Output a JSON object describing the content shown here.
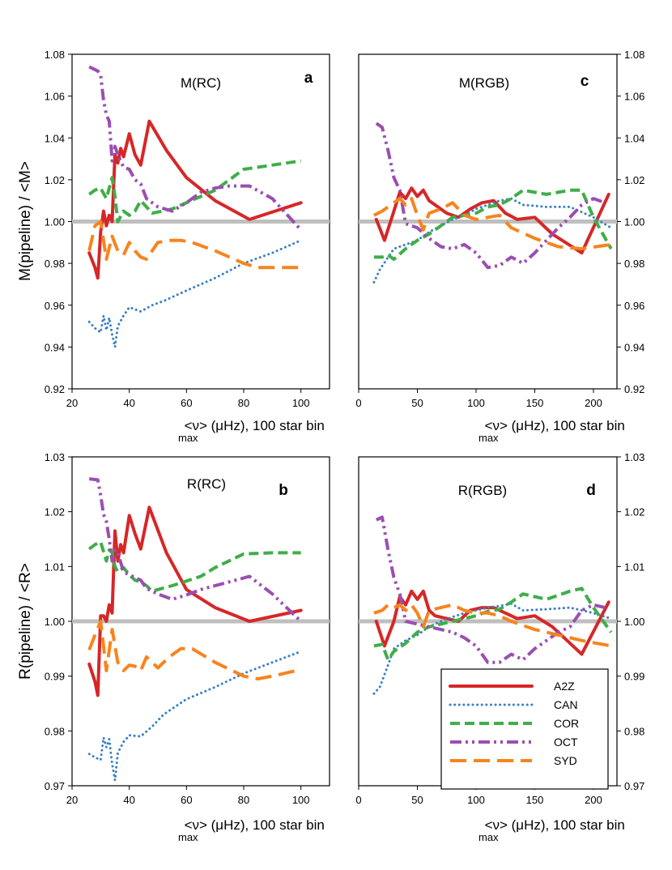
{
  "colors": {
    "A2Z": "#d62728",
    "CAN": "#3b80c4",
    "COR": "#3fae48",
    "OCT": "#9a4fb0",
    "SYD": "#f7841d",
    "reference": "#bfbfbf"
  },
  "legend": [
    "A2Z",
    "CAN",
    "COR",
    "OCT",
    "SYD"
  ],
  "xlabel_parts": {
    "pre": "<ν",
    "sub": "max",
    "post": "> (μHz), 100 star bin"
  },
  "ylabels": {
    "mass": "M(pipeline) / <M>",
    "radius": "R(pipeline) / <R>"
  },
  "chart_data": [
    {
      "id": "a",
      "type": "line",
      "title": "M(RC)",
      "letter": "a",
      "xlim": [
        20,
        110
      ],
      "ylim": [
        0.92,
        1.08
      ],
      "xticks": [
        20,
        40,
        60,
        80,
        100
      ],
      "yticks": [
        0.92,
        0.94,
        0.96,
        0.98,
        1.0,
        1.02,
        1.04,
        1.06,
        1.08
      ],
      "ytick_labels": [
        "0.92",
        "0.94",
        "0.96",
        "0.98",
        "1.00",
        "1.02",
        "1.04",
        "1.06",
        "1.08"
      ],
      "y_axis_side": "left",
      "reference_line": 1.0,
      "series": [
        {
          "name": "A2Z",
          "x": [
            26,
            28,
            29,
            30,
            31,
            32,
            33,
            34,
            35,
            36,
            37,
            38,
            40,
            42,
            44,
            47,
            53,
            60,
            70,
            82,
            100
          ],
          "y": [
            0.985,
            0.978,
            0.973,
            0.995,
            1.005,
            0.998,
            1.003,
            1.0,
            1.032,
            1.028,
            1.035,
            1.031,
            1.042,
            1.032,
            1.027,
            1.048,
            1.034,
            1.021,
            1.01,
            1.001,
            1.009
          ]
        },
        {
          "name": "CAN",
          "x": [
            26,
            28,
            30,
            31,
            32,
            33,
            34,
            35,
            36,
            38,
            40,
            44,
            48,
            52,
            60,
            70,
            80,
            90,
            100
          ],
          "y": [
            0.952,
            0.949,
            0.947,
            0.955,
            0.948,
            0.954,
            0.946,
            0.94,
            0.95,
            0.955,
            0.959,
            0.957,
            0.96,
            0.962,
            0.967,
            0.973,
            0.98,
            0.985,
            0.991
          ]
        },
        {
          "name": "COR",
          "x": [
            26,
            28,
            30,
            32,
            33,
            34,
            35,
            36,
            38,
            40,
            42,
            44,
            46,
            48,
            55,
            65,
            70,
            80,
            90,
            100
          ],
          "y": [
            1.013,
            1.015,
            1.016,
            1.011,
            1.016,
            1.021,
            1.012,
            1.0,
            1.005,
            1.003,
            1.005,
            1.01,
            1.007,
            1.004,
            1.006,
            1.012,
            1.015,
            1.025,
            1.027,
            1.029
          ]
        },
        {
          "name": "OCT",
          "x": [
            26,
            29,
            30,
            31,
            32,
            33,
            34,
            35,
            36,
            38,
            40,
            42,
            44,
            46,
            50,
            55,
            60,
            65,
            70,
            75,
            82,
            90,
            100
          ],
          "y": [
            1.074,
            1.072,
            1.07,
            1.058,
            1.051,
            1.048,
            1.029,
            1.036,
            1.032,
            1.026,
            1.025,
            1.02,
            1.018,
            1.011,
            1.007,
            1.005,
            1.009,
            1.014,
            1.016,
            1.017,
            1.017,
            1.011,
            0.996
          ]
        },
        {
          "name": "SYD",
          "x": [
            26,
            28,
            30,
            32,
            34,
            36,
            38,
            40,
            42,
            44,
            46,
            50,
            54,
            58,
            62,
            70,
            80,
            85,
            90,
            100
          ],
          "y": [
            0.986,
            0.998,
            1.0,
            0.982,
            0.993,
            0.986,
            0.984,
            0.99,
            0.986,
            0.983,
            0.982,
            0.99,
            0.991,
            0.991,
            0.99,
            0.986,
            0.98,
            0.978,
            0.978,
            0.978
          ]
        }
      ]
    },
    {
      "id": "c",
      "type": "line",
      "title": "M(RGB)",
      "letter": "c",
      "xlim": [
        0,
        220
      ],
      "ylim": [
        0.92,
        1.08
      ],
      "xticks": [
        0,
        50,
        100,
        150,
        200
      ],
      "yticks": [
        0.92,
        0.94,
        0.96,
        0.98,
        1.0,
        1.02,
        1.04,
        1.06,
        1.08
      ],
      "ytick_labels": [
        "0.92",
        "0.94",
        "0.96",
        "0.98",
        "1.00",
        "1.02",
        "1.04",
        "1.06",
        "1.08"
      ],
      "y_axis_side": "right",
      "reference_line": 1.0,
      "series": [
        {
          "name": "A2Z",
          "x": [
            15,
            22,
            30,
            35,
            40,
            45,
            50,
            55,
            60,
            65,
            75,
            85,
            95,
            105,
            115,
            125,
            135,
            150,
            165,
            190,
            213
          ],
          "y": [
            1.001,
            0.991,
            1.005,
            1.014,
            1.011,
            1.016,
            1.012,
            1.015,
            1.01,
            1.008,
            1.004,
            1.002,
            1.006,
            1.009,
            1.01,
            1.004,
            1.001,
            1.002,
            0.994,
            0.985,
            1.013
          ]
        },
        {
          "name": "CAN",
          "x": [
            13,
            18,
            25,
            30,
            40,
            50,
            60,
            70,
            80,
            90,
            100,
            110,
            120,
            130,
            140,
            160,
            180,
            200,
            215
          ],
          "y": [
            0.971,
            0.977,
            0.983,
            0.987,
            0.989,
            0.991,
            0.995,
            0.998,
            1.001,
            1.003,
            1.006,
            1.008,
            1.01,
            1.011,
            1.008,
            1.007,
            1.007,
            1.002,
            0.997
          ]
        },
        {
          "name": "COR",
          "x": [
            13,
            20,
            25,
            30,
            40,
            50,
            60,
            70,
            80,
            90,
            100,
            110,
            120,
            130,
            140,
            150,
            160,
            180,
            190,
            200,
            215
          ],
          "y": [
            0.983,
            0.983,
            0.984,
            0.982,
            0.987,
            0.991,
            0.994,
            0.998,
            1.002,
            1.003,
            1.004,
            1.007,
            1.008,
            1.011,
            1.015,
            1.014,
            1.013,
            1.015,
            1.015,
            1.002,
            0.987
          ]
        },
        {
          "name": "OCT",
          "x": [
            15,
            20,
            25,
            30,
            35,
            40,
            50,
            60,
            70,
            80,
            90,
            100,
            110,
            120,
            130,
            140,
            150,
            160,
            170,
            180,
            190,
            200,
            210
          ],
          "y": [
            1.047,
            1.045,
            1.034,
            1.021,
            1.015,
            0.999,
            0.997,
            0.992,
            0.988,
            0.987,
            0.989,
            0.985,
            0.978,
            0.979,
            0.983,
            0.98,
            0.985,
            0.991,
            0.997,
            1.002,
            1.008,
            1.011,
            1.009
          ]
        },
        {
          "name": "SYD",
          "x": [
            13,
            20,
            25,
            30,
            35,
            40,
            45,
            50,
            55,
            60,
            70,
            80,
            90,
            100,
            110,
            120,
            130,
            150,
            170,
            190,
            215
          ],
          "y": [
            1.003,
            1.005,
            1.007,
            1.009,
            1.011,
            1.008,
            1.011,
            1.003,
            0.996,
            1.004,
            1.006,
            1.009,
            1.003,
            1.001,
            1.002,
            1.003,
            0.997,
            0.992,
            0.988,
            0.987,
            0.989
          ]
        }
      ]
    },
    {
      "id": "b",
      "type": "line",
      "title": "R(RC)",
      "letter": "b",
      "xlim": [
        20,
        110
      ],
      "ylim": [
        0.97,
        1.03
      ],
      "xticks": [
        20,
        40,
        60,
        80,
        100
      ],
      "yticks": [
        0.97,
        0.98,
        0.99,
        1.0,
        1.01,
        1.02,
        1.03
      ],
      "ytick_labels": [
        "0.97",
        "0.98",
        "0.99",
        "1.00",
        "1.01",
        "1.02",
        "1.03"
      ],
      "y_axis_side": "left",
      "reference_line": 1.0,
      "series": [
        {
          "name": "A2Z",
          "x": [
            26,
            28,
            29,
            30,
            31,
            32,
            33,
            34,
            35,
            36,
            37,
            38,
            40,
            42,
            44,
            47,
            53,
            60,
            70,
            82,
            100
          ],
          "y": [
            0.9922,
            0.989,
            0.9865,
            1.001,
            1.001,
            1.0,
            1.003,
            1.0015,
            1.0165,
            1.011,
            1.014,
            1.0125,
            1.0193,
            1.016,
            1.0132,
            1.0208,
            1.0125,
            1.0058,
            1.0025,
            1.0,
            1.002
          ]
        },
        {
          "name": "CAN",
          "x": [
            26,
            28,
            30,
            31,
            32,
            33,
            34,
            35,
            36,
            38,
            40,
            44,
            48,
            52,
            60,
            70,
            80,
            90,
            100
          ],
          "y": [
            0.9758,
            0.9752,
            0.9747,
            0.9788,
            0.977,
            0.9785,
            0.974,
            0.971,
            0.976,
            0.978,
            0.9792,
            0.979,
            0.9808,
            0.983,
            0.9858,
            0.988,
            0.9905,
            0.9925,
            0.9945
          ]
        },
        {
          "name": "COR",
          "x": [
            26,
            28,
            30,
            32,
            33,
            34,
            35,
            36,
            38,
            40,
            42,
            44,
            46,
            48,
            55,
            65,
            70,
            80,
            90,
            100
          ],
          "y": [
            1.0132,
            1.014,
            1.0145,
            1.011,
            1.013,
            1.0125,
            1.01,
            1.009,
            1.0098,
            1.0085,
            1.0075,
            1.0072,
            1.0065,
            1.0055,
            1.0065,
            1.0082,
            1.0098,
            1.0123,
            1.0125,
            1.0125
          ]
        },
        {
          "name": "OCT",
          "x": [
            26,
            29,
            30,
            31,
            32,
            33,
            34,
            35,
            36,
            38,
            40,
            42,
            44,
            46,
            50,
            55,
            60,
            65,
            70,
            75,
            82,
            90,
            100
          ],
          "y": [
            1.026,
            1.0258,
            1.023,
            1.0195,
            1.0182,
            1.015,
            1.011,
            1.013,
            1.0125,
            1.009,
            1.0085,
            1.008,
            1.0075,
            1.006,
            1.005,
            1.004,
            1.0048,
            1.0058,
            1.0065,
            1.0072,
            1.0082,
            1.005,
            1.0
          ]
        },
        {
          "name": "SYD",
          "x": [
            26,
            28,
            30,
            32,
            34,
            36,
            38,
            40,
            42,
            44,
            46,
            50,
            54,
            58,
            62,
            70,
            80,
            85,
            90,
            100
          ],
          "y": [
            0.9948,
            0.9975,
            1.0,
            0.991,
            0.9985,
            0.9925,
            0.991,
            0.992,
            0.9918,
            0.991,
            0.9935,
            0.9915,
            0.9935,
            0.995,
            0.995,
            0.9925,
            0.99,
            0.9895,
            0.99,
            0.9912
          ]
        }
      ]
    },
    {
      "id": "d",
      "type": "line",
      "title": "R(RGB)",
      "letter": "d",
      "xlim": [
        0,
        220
      ],
      "ylim": [
        0.97,
        1.03
      ],
      "xticks": [
        0,
        50,
        100,
        150,
        200
      ],
      "yticks": [
        0.97,
        0.98,
        0.99,
        1.0,
        1.01,
        1.02,
        1.03
      ],
      "ytick_labels": [
        "0.97",
        "0.98",
        "0.99",
        "1.00",
        "1.01",
        "1.02",
        "1.03"
      ],
      "y_axis_side": "right",
      "reference_line": 1.0,
      "series": [
        {
          "name": "A2Z",
          "x": [
            15,
            22,
            30,
            35,
            40,
            45,
            50,
            55,
            60,
            65,
            75,
            85,
            95,
            105,
            115,
            125,
            135,
            150,
            165,
            190,
            213
          ],
          "y": [
            1.0,
            0.9955,
            1.0,
            1.0045,
            1.003,
            1.0055,
            1.004,
            1.0055,
            1.002,
            1.001,
            1.0005,
            1.0,
            1.002,
            1.0025,
            1.0025,
            1.0015,
            1.0005,
            1.001,
            0.999,
            0.994,
            1.0035
          ]
        },
        {
          "name": "CAN",
          "x": [
            13,
            18,
            25,
            30,
            40,
            50,
            60,
            70,
            80,
            90,
            100,
            110,
            120,
            130,
            140,
            160,
            180,
            200,
            215
          ],
          "y": [
            0.9868,
            0.988,
            0.992,
            0.995,
            0.9965,
            0.9975,
            0.999,
            1.0,
            1.0008,
            1.0015,
            1.002,
            1.0025,
            1.0028,
            1.0032,
            1.002,
            1.0022,
            1.0025,
            1.0015,
            1.0005
          ]
        },
        {
          "name": "COR",
          "x": [
            13,
            20,
            25,
            30,
            40,
            50,
            60,
            70,
            80,
            90,
            100,
            110,
            120,
            130,
            140,
            150,
            160,
            180,
            190,
            200,
            215
          ],
          "y": [
            0.9955,
            0.9958,
            0.993,
            0.9945,
            0.996,
            0.998,
            0.999,
            0.9995,
            1.0,
            1.0005,
            1.001,
            1.0018,
            1.0022,
            1.0035,
            1.005,
            1.0045,
            1.004,
            1.0055,
            1.006,
            1.0025,
            0.998
          ]
        },
        {
          "name": "OCT",
          "x": [
            15,
            20,
            25,
            30,
            35,
            40,
            50,
            60,
            70,
            80,
            90,
            100,
            110,
            120,
            130,
            140,
            150,
            160,
            170,
            180,
            190,
            200,
            210
          ],
          "y": [
            1.0185,
            1.019,
            1.013,
            1.008,
            1.005,
            1.0,
            0.9995,
            0.999,
            0.9985,
            0.998,
            0.997,
            0.9955,
            0.9925,
            0.9925,
            0.994,
            0.993,
            0.995,
            0.9965,
            0.998,
            0.999,
            1.002,
            1.003,
            1.0025
          ]
        },
        {
          "name": "SYD",
          "x": [
            13,
            20,
            25,
            30,
            35,
            40,
            45,
            50,
            55,
            60,
            70,
            80,
            90,
            100,
            110,
            120,
            130,
            150,
            170,
            190,
            215
          ],
          "y": [
            1.0015,
            1.002,
            1.003,
            1.0025,
            1.003,
            1.002,
            1.003,
            1.0015,
            0.999,
            1.002,
            1.0025,
            1.003,
            1.002,
            1.0015,
            1.0015,
            1.001,
            1.0,
            0.9985,
            0.9975,
            0.9965,
            0.9955
          ]
        }
      ]
    }
  ]
}
